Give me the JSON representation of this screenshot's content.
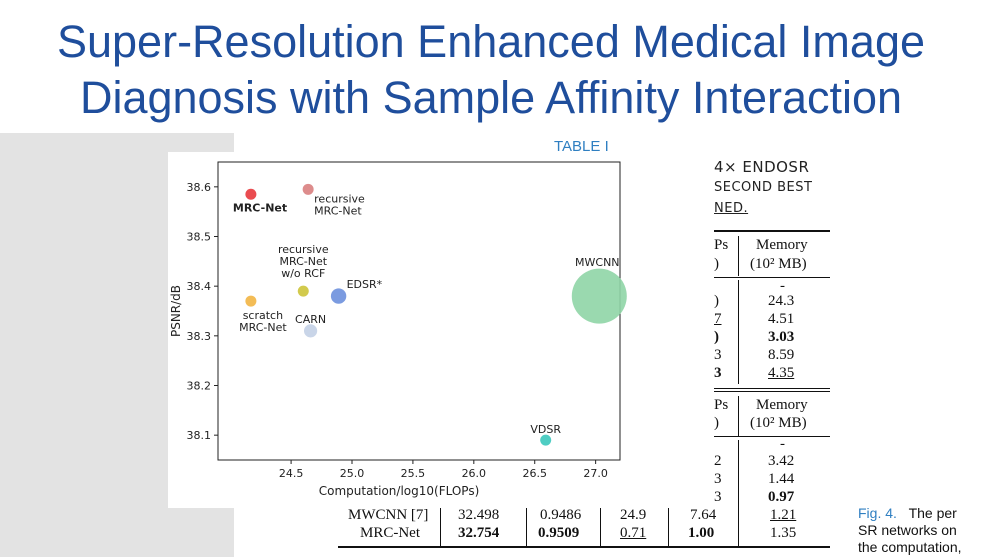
{
  "slide": {
    "title_line1": "Super-Resolution Enhanced Medical Image",
    "title_line2": "Diagnosis with Sample Affinity Interaction"
  },
  "table": {
    "caption": "TABLE I",
    "caption_line1": "4× ENDOSR",
    "caption_line2": "SECOND BEST",
    "caption_line3": "NED.",
    "header_frag1_top": "Ps",
    "header_frag1_bot": ")",
    "memory_header": "Memory",
    "memory_unit": "(10² MB)",
    "section1": {
      "frag": [
        ")",
        "7",
        ")",
        "3",
        "3"
      ],
      "memory": [
        "-",
        "24.3",
        "4.51",
        "3.03",
        "8.59",
        "4.35"
      ]
    },
    "section2": {
      "frag": [
        "2",
        "3",
        "3"
      ],
      "memory": [
        "-",
        "3.42",
        "1.44",
        "0.97"
      ]
    },
    "bottom_rows": [
      {
        "name": "MWCNN [7]",
        "c1": "32.498",
        "c2": "0.9486",
        "c3": "24.9",
        "c4": "7.64",
        "mem": "1.21"
      },
      {
        "name": "MRC-Net",
        "c1": "32.754",
        "c2": "0.9509",
        "c3": "0.71",
        "c4": "1.00",
        "mem": "1.35"
      }
    ]
  },
  "figure_caption": {
    "fig_num": "Fig. 4.",
    "line1_text": "The per",
    "line2": "SR networks on",
    "line3": "the computation,"
  },
  "chart_data": {
    "type": "scatter",
    "xlabel": "Computation/log10(FLOPs)",
    "ylabel": "PSNR/dB",
    "xlim": [
      23.9,
      27.2
    ],
    "ylim": [
      38.05,
      38.65
    ],
    "xticks": [
      "24.5",
      "25.0",
      "25.5",
      "26.0",
      "26.5",
      "27.0"
    ],
    "yticks": [
      "38.1",
      "38.2",
      "38.3",
      "38.4",
      "38.5",
      "38.6"
    ],
    "points": [
      {
        "label": "MRC-Net",
        "x": 24.17,
        "y": 38.585,
        "color": "#e8383d",
        "size": 1,
        "bold": true
      },
      {
        "label": "recursive MRC-Net",
        "x": 24.64,
        "y": 38.595,
        "color": "#d98080",
        "size": 1,
        "bold": false
      },
      {
        "label": "recursive MRC-Net w/o RCF",
        "x": 24.6,
        "y": 38.39,
        "color": "#cdc43a",
        "size": 1,
        "bold": false
      },
      {
        "label": "EDSR*",
        "x": 24.89,
        "y": 38.38,
        "color": "#6d90dd",
        "size": 1.4,
        "bold": false
      },
      {
        "label": "scratch MRC-Net",
        "x": 24.17,
        "y": 38.37,
        "color": "#f2b544",
        "size": 1,
        "bold": false
      },
      {
        "label": "CARN",
        "x": 24.66,
        "y": 38.31,
        "color": "#c3d0e6",
        "size": 1.2,
        "bold": false
      },
      {
        "label": "MWCNN",
        "x": 27.03,
        "y": 38.38,
        "color": "#8fd5a6",
        "size": 5,
        "bold": false
      },
      {
        "label": "VDSR",
        "x": 26.59,
        "y": 38.09,
        "color": "#3cc8bd",
        "size": 1,
        "bold": false
      }
    ]
  }
}
